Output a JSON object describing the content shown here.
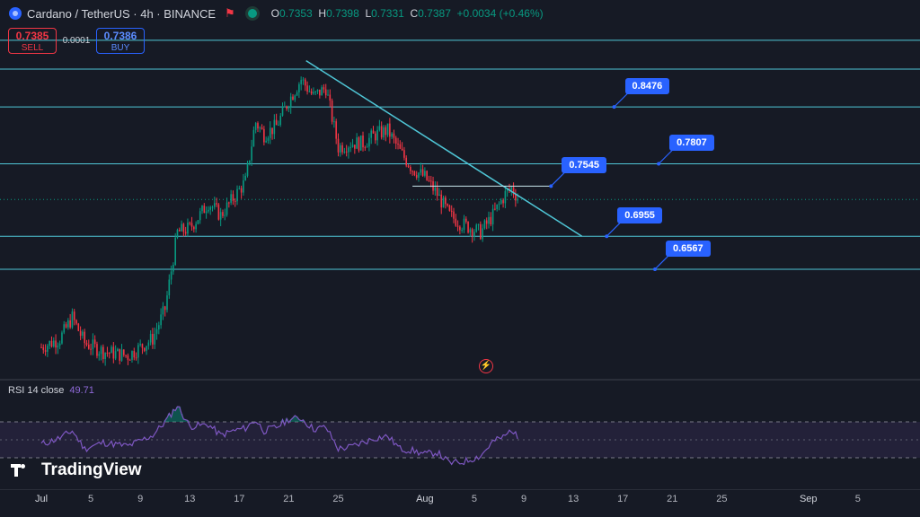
{
  "header": {
    "title": "Cardano / TetherUS · 4h · BINANCE",
    "ohlc": [
      {
        "k": "O",
        "v": "0.7353"
      },
      {
        "k": "H",
        "v": "0.7398"
      },
      {
        "k": "L",
        "v": "0.7331"
      },
      {
        "k": "C",
        "v": "0.7387"
      }
    ],
    "change": "+0.0034 (+0.46%)"
  },
  "trade": {
    "sell_price": "0.7385",
    "sell_label": "SELL",
    "spread": "0.0001",
    "buy_price": "0.7386",
    "buy_label": "BUY"
  },
  "indicator": {
    "label": "RSI 14 close",
    "value": "49.71"
  },
  "branding": {
    "logo_text": "TradingView"
  },
  "colors": {
    "up": "#089981",
    "down": "#f23645",
    "line": "#4fc6d6",
    "tag": "#2962ff",
    "rsi": "#7e57c2"
  },
  "chart_data": {
    "type": "candlestick",
    "ylim": [
      0.53,
      0.91
    ],
    "x_ticks": [
      {
        "label": "Jul",
        "day": 1
      },
      {
        "label": "5",
        "day": 5
      },
      {
        "label": "9",
        "day": 9
      },
      {
        "label": "13",
        "day": 13
      },
      {
        "label": "17",
        "day": 17
      },
      {
        "label": "21",
        "day": 21
      },
      {
        "label": "25",
        "day": 25
      },
      {
        "label": "Aug",
        "day": 32
      },
      {
        "label": "5",
        "day": 36
      },
      {
        "label": "9",
        "day": 40
      },
      {
        "label": "13",
        "day": 44
      },
      {
        "label": "17",
        "day": 48
      },
      {
        "label": "21",
        "day": 52
      },
      {
        "label": "25",
        "day": 56
      },
      {
        "label": "Sep",
        "day": 63
      },
      {
        "label": "5",
        "day": 67
      }
    ],
    "levels": [
      {
        "value": 0.8476,
        "label": "0.8476",
        "label_day": 47.3
      },
      {
        "value": 0.7807,
        "label": "0.7807",
        "label_day": 50.9
      },
      {
        "value": 0.6955,
        "label": "0.6955",
        "label_day": 46.7
      },
      {
        "value": 0.6567,
        "label": "0.6567",
        "label_day": 50.6
      }
    ],
    "extra_levels": [
      0.892,
      0.926
    ],
    "current_price": 0.7387,
    "horizontal_segment": {
      "value": 0.7545,
      "label": "0.7545",
      "from_day": 31.0,
      "to_day": 42.2
    },
    "trendline": {
      "from": {
        "day": 22.4,
        "price": 0.902
      },
      "to": {
        "day": 44.7,
        "price": 0.6955
      }
    },
    "candle_anchors": [
      {
        "day": 1.0,
        "price": 0.565
      },
      {
        "day": 2.5,
        "price": 0.575
      },
      {
        "day": 3.5,
        "price": 0.6
      },
      {
        "day": 4.5,
        "price": 0.57
      },
      {
        "day": 6.0,
        "price": 0.56
      },
      {
        "day": 8.0,
        "price": 0.555
      },
      {
        "day": 10.0,
        "price": 0.575
      },
      {
        "day": 11.0,
        "price": 0.61
      },
      {
        "day": 12.0,
        "price": 0.7
      },
      {
        "day": 13.0,
        "price": 0.705
      },
      {
        "day": 13.8,
        "price": 0.72
      },
      {
        "day": 14.5,
        "price": 0.735
      },
      {
        "day": 15.5,
        "price": 0.72
      },
      {
        "day": 16.5,
        "price": 0.74
      },
      {
        "day": 17.5,
        "price": 0.76
      },
      {
        "day": 18.3,
        "price": 0.83
      },
      {
        "day": 19.0,
        "price": 0.815
      },
      {
        "day": 20.0,
        "price": 0.825
      },
      {
        "day": 21.0,
        "price": 0.855
      },
      {
        "day": 22.0,
        "price": 0.88
      },
      {
        "day": 23.0,
        "price": 0.86
      },
      {
        "day": 24.0,
        "price": 0.87
      },
      {
        "day": 25.0,
        "price": 0.8
      },
      {
        "day": 26.0,
        "price": 0.805
      },
      {
        "day": 27.0,
        "price": 0.805
      },
      {
        "day": 28.0,
        "price": 0.815
      },
      {
        "day": 29.0,
        "price": 0.82
      },
      {
        "day": 30.0,
        "price": 0.795
      },
      {
        "day": 31.0,
        "price": 0.775
      },
      {
        "day": 32.0,
        "price": 0.765
      },
      {
        "day": 33.0,
        "price": 0.745
      },
      {
        "day": 34.0,
        "price": 0.72
      },
      {
        "day": 35.0,
        "price": 0.71
      },
      {
        "day": 36.5,
        "price": 0.7
      },
      {
        "day": 37.5,
        "price": 0.72
      },
      {
        "day": 38.5,
        "price": 0.745
      },
      {
        "day": 39.0,
        "price": 0.752
      },
      {
        "day": 39.6,
        "price": 0.739
      }
    ],
    "rsi": {
      "ylim": [
        0,
        100
      ],
      "overbought": 70,
      "oversold": 30,
      "points": [
        {
          "day": 1.0,
          "v": 45
        },
        {
          "day": 2.5,
          "v": 52
        },
        {
          "day": 3.5,
          "v": 60
        },
        {
          "day": 4.5,
          "v": 40
        },
        {
          "day": 6.0,
          "v": 47
        },
        {
          "day": 8.0,
          "v": 43
        },
        {
          "day": 10.0,
          "v": 55
        },
        {
          "day": 11.0,
          "v": 70
        },
        {
          "day": 12.0,
          "v": 88
        },
        {
          "day": 13.0,
          "v": 65
        },
        {
          "day": 14.5,
          "v": 67
        },
        {
          "day": 15.5,
          "v": 55
        },
        {
          "day": 16.5,
          "v": 60
        },
        {
          "day": 17.5,
          "v": 63
        },
        {
          "day": 18.3,
          "v": 72
        },
        {
          "day": 19.0,
          "v": 60
        },
        {
          "day": 20.0,
          "v": 64
        },
        {
          "day": 21.0,
          "v": 73
        },
        {
          "day": 22.0,
          "v": 74
        },
        {
          "day": 23.0,
          "v": 62
        },
        {
          "day": 24.0,
          "v": 64
        },
        {
          "day": 25.0,
          "v": 40
        },
        {
          "day": 26.0,
          "v": 42
        },
        {
          "day": 27.0,
          "v": 47
        },
        {
          "day": 28.0,
          "v": 52
        },
        {
          "day": 29.0,
          "v": 54
        },
        {
          "day": 30.0,
          "v": 40
        },
        {
          "day": 31.0,
          "v": 38
        },
        {
          "day": 32.0,
          "v": 34
        },
        {
          "day": 33.0,
          "v": 36
        },
        {
          "day": 34.0,
          "v": 24
        },
        {
          "day": 35.0,
          "v": 25
        },
        {
          "day": 36.5,
          "v": 32
        },
        {
          "day": 37.5,
          "v": 48
        },
        {
          "day": 38.5,
          "v": 54
        },
        {
          "day": 39.0,
          "v": 62
        },
        {
          "day": 39.6,
          "v": 49.71
        }
      ]
    }
  }
}
